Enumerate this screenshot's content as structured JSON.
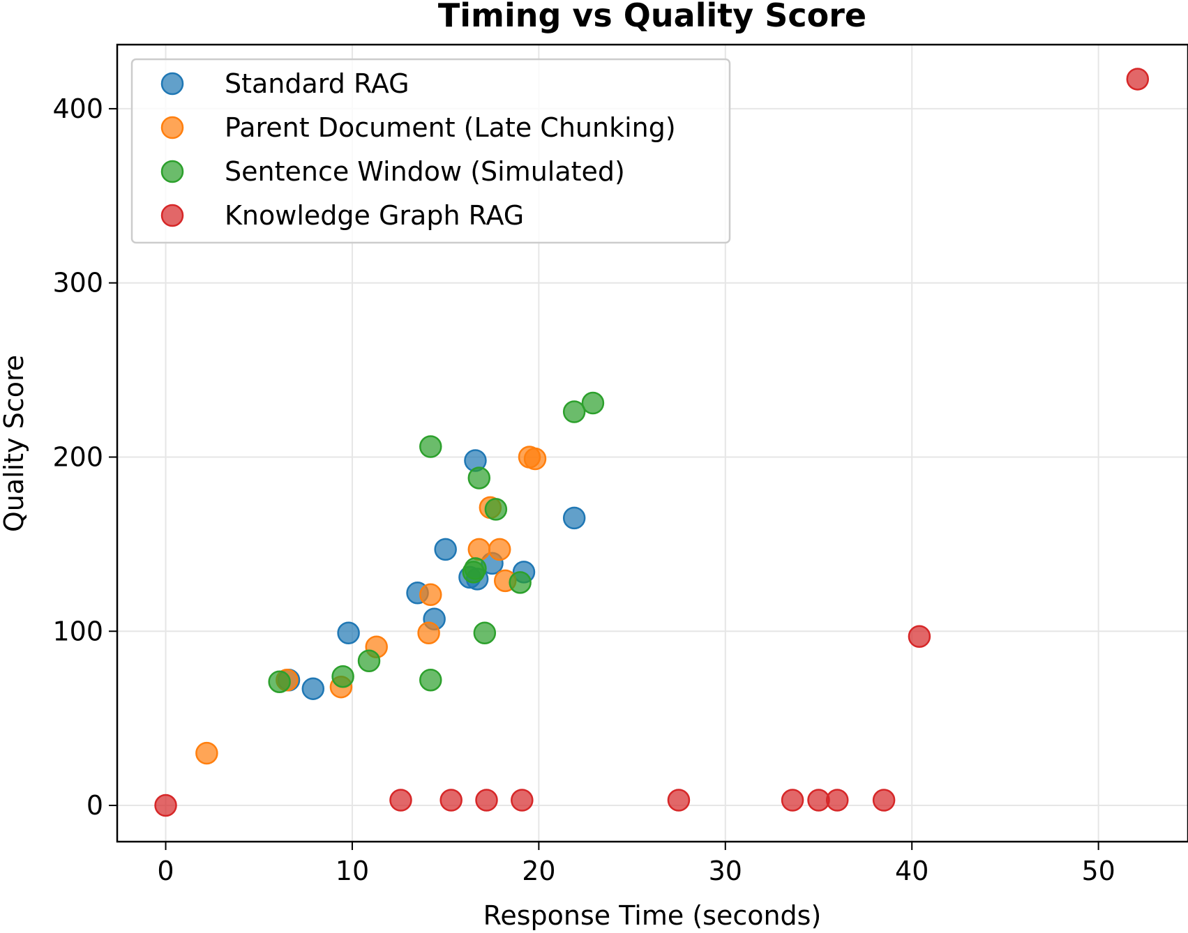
{
  "chart_data": {
    "type": "scatter",
    "title": "Timing vs Quality Score",
    "xlabel": "Response Time (seconds)",
    "ylabel": "Quality Score",
    "xlim": [
      -2.6,
      54.8
    ],
    "ylim": [
      -20.8,
      436.8
    ],
    "xticks": [
      0,
      10,
      20,
      30,
      40,
      50
    ],
    "yticks": [
      0,
      100,
      200,
      300,
      400
    ],
    "grid": true,
    "legend_position": "upper-left",
    "series": [
      {
        "name": "Standard RAG",
        "color": "#1f77b4",
        "points": [
          [
            6.6,
            72
          ],
          [
            7.9,
            67
          ],
          [
            9.8,
            99
          ],
          [
            13.5,
            122
          ],
          [
            14.4,
            107
          ],
          [
            15.0,
            147
          ],
          [
            16.3,
            131
          ],
          [
            16.7,
            130
          ],
          [
            16.6,
            198
          ],
          [
            17.5,
            139
          ],
          [
            19.2,
            134
          ],
          [
            21.9,
            165
          ]
        ]
      },
      {
        "name": "Parent Document (Late Chunking)",
        "color": "#ff7f0e",
        "points": [
          [
            2.2,
            30
          ],
          [
            6.5,
            72
          ],
          [
            9.4,
            68
          ],
          [
            11.3,
            91
          ],
          [
            14.1,
            99
          ],
          [
            14.2,
            121
          ],
          [
            16.8,
            147
          ],
          [
            17.4,
            171
          ],
          [
            17.9,
            147
          ],
          [
            18.2,
            129
          ],
          [
            19.5,
            200
          ],
          [
            19.8,
            199
          ]
        ]
      },
      {
        "name": "Sentence Window (Simulated)",
        "color": "#2ca02c",
        "points": [
          [
            6.1,
            71
          ],
          [
            9.5,
            74
          ],
          [
            10.9,
            83
          ],
          [
            14.2,
            72
          ],
          [
            14.2,
            206
          ],
          [
            16.5,
            134
          ],
          [
            16.6,
            136
          ],
          [
            16.8,
            188
          ],
          [
            17.1,
            99
          ],
          [
            17.7,
            170
          ],
          [
            19.0,
            128
          ],
          [
            21.9,
            226
          ],
          [
            22.9,
            231
          ]
        ]
      },
      {
        "name": "Knowledge Graph RAG",
        "color": "#d62728",
        "points": [
          [
            0.0,
            0
          ],
          [
            12.6,
            3
          ],
          [
            15.3,
            3
          ],
          [
            17.2,
            3
          ],
          [
            19.1,
            3
          ],
          [
            27.5,
            3
          ],
          [
            33.6,
            3
          ],
          [
            35.0,
            3
          ],
          [
            36.0,
            3
          ],
          [
            38.5,
            3
          ],
          [
            40.4,
            97
          ],
          [
            52.1,
            417
          ]
        ]
      }
    ]
  }
}
